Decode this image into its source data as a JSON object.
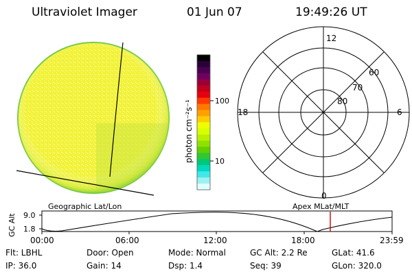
{
  "header": {
    "title": "Ultraviolet Imager",
    "date": "01 Jun 07",
    "time": "19:49:26 UT"
  },
  "colorbar": {
    "label": "photon cm⁻²s⁻¹",
    "ticks": [
      "100",
      "10"
    ],
    "colors": [
      "#000000",
      "#2a0038",
      "#4a0050",
      "#700060",
      "#9a0038",
      "#c0001c",
      "#e60010",
      "#ff3c00",
      "#ff7800",
      "#ffa000",
      "#ffcc00",
      "#f0ff00",
      "#d8ff00",
      "#b8f000",
      "#90e000",
      "#60d000",
      "#30c830",
      "#00c878",
      "#00d8c0",
      "#40e8e8",
      "#a0f0f0",
      "#e0ffff"
    ],
    "accent": "#f2f23a"
  },
  "polar": {
    "hour_labels": [
      "12",
      "18",
      "6",
      "0"
    ],
    "lat_labels": [
      "60",
      "70",
      "80"
    ]
  },
  "graph": {
    "left_label": "Geographic Lat/Lon",
    "right_label": "Apex MLat/MLT",
    "axis_label": "GC Alt",
    "y_ticks": [
      "9.0",
      "1.8"
    ],
    "x_ticks": [
      "00:00",
      "06:00",
      "12:00",
      "18:00",
      "23:59"
    ],
    "marker_color": "#cc0000"
  },
  "info": {
    "flt": "Flt: LBHL",
    "ip": "IP: 36.0",
    "door": "Door: Open",
    "gain": "Gain: 14",
    "mode": "Mode: Normal",
    "dsp": "Dsp:     1.4",
    "gc_alt": "GC Alt: 2.2 Re",
    "seq": "Seq: 39",
    "glat": "GLat:  41.6",
    "glon": "GLon: 320.0"
  }
}
